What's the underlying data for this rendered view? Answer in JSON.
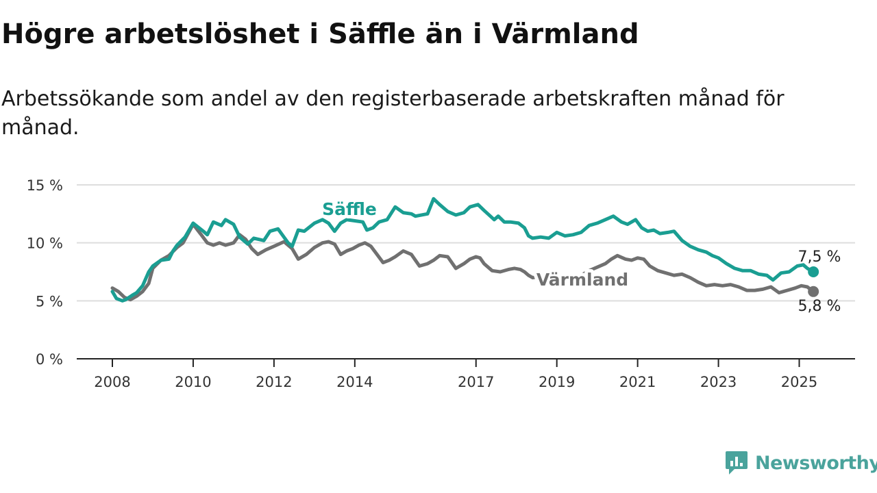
{
  "title": "Högre arbetslöshet i Säffle än i Värmland",
  "subtitle": "Arbetssökande som andel av den registerbaserade arbetskraften månad för månad.",
  "brand": "Newsworthy",
  "colors": {
    "saffle": "#1a9e92",
    "varmland": "#707070",
    "grid": "#dddddd",
    "axis": "#222222"
  },
  "chart_data": {
    "type": "line",
    "title": "Högre arbetslöshet i Säffle än i Värmland",
    "ylim": [
      0,
      15
    ],
    "xlim": [
      2008,
      2025.5
    ],
    "y_ticks": [
      0,
      5,
      10,
      15
    ],
    "y_tick_labels": [
      "0 %",
      "5 %",
      "10 %",
      "15 %"
    ],
    "x_ticks": [
      2008,
      2010,
      2012,
      2014,
      2017,
      2019,
      2021,
      2023,
      2025
    ],
    "x_tick_labels": [
      "2008",
      "2010",
      "2012",
      "2014",
      "2017",
      "2019",
      "2021",
      "2023",
      "2025"
    ],
    "grid": true,
    "legend": "inline labels",
    "series": [
      {
        "name": "Säffle",
        "end_label": "7,5 %",
        "x": [
          2008.0,
          2008.1,
          2008.25,
          2008.33,
          2008.5,
          2008.6,
          2008.75,
          2008.9,
          2009.0,
          2009.2,
          2009.4,
          2009.5,
          2009.6,
          2009.8,
          2010.0,
          2010.25,
          2010.35,
          2010.5,
          2010.7,
          2010.8,
          2011.0,
          2011.15,
          2011.35,
          2011.5,
          2011.75,
          2011.9,
          2012.1,
          2012.35,
          2012.45,
          2012.6,
          2012.75,
          2013.0,
          2013.2,
          2013.35,
          2013.5,
          2013.65,
          2013.8,
          2014.2,
          2014.3,
          2014.45,
          2014.6,
          2014.8,
          2015.0,
          2015.2,
          2015.4,
          2015.5,
          2015.8,
          2015.95,
          2016.1,
          2016.3,
          2016.5,
          2016.7,
          2016.85,
          2017.05,
          2017.2,
          2017.45,
          2017.55,
          2017.7,
          2017.85,
          2018.05,
          2018.2,
          2018.3,
          2018.4,
          2018.6,
          2018.8,
          2019.0,
          2019.2,
          2019.4,
          2019.6,
          2019.8,
          2020.0,
          2020.2,
          2020.4,
          2020.6,
          2020.75,
          2020.95,
          2021.1,
          2021.25,
          2021.4,
          2021.55,
          2021.75,
          2021.9,
          2022.1,
          2022.3,
          2022.5,
          2022.7,
          2022.85,
          2023.0,
          2023.2,
          2023.4,
          2023.6,
          2023.8,
          2024.0,
          2024.2,
          2024.35,
          2024.55,
          2024.75,
          2024.95,
          2025.1,
          2025.2,
          2025.35
        ],
        "y": [
          5.8,
          5.2,
          5.0,
          5.1,
          5.5,
          5.7,
          6.3,
          7.5,
          8.0,
          8.5,
          8.6,
          9.3,
          9.8,
          10.5,
          11.7,
          11.0,
          10.7,
          11.8,
          11.5,
          12.0,
          11.6,
          10.5,
          9.9,
          10.4,
          10.2,
          11.0,
          11.2,
          10.0,
          9.7,
          11.1,
          11.0,
          11.7,
          12.0,
          11.7,
          11.0,
          11.7,
          12.0,
          11.8,
          11.1,
          11.3,
          11.8,
          12.0,
          13.1,
          12.6,
          12.5,
          12.3,
          12.5,
          13.8,
          13.3,
          12.7,
          12.4,
          12.6,
          13.1,
          13.3,
          12.8,
          12.0,
          12.3,
          11.8,
          11.8,
          11.7,
          11.3,
          10.6,
          10.4,
          10.5,
          10.4,
          10.9,
          10.6,
          10.7,
          10.9,
          11.5,
          11.7,
          12.0,
          12.3,
          11.8,
          11.6,
          12.0,
          11.3,
          11.0,
          11.1,
          10.8,
          10.9,
          11.0,
          10.2,
          9.7,
          9.4,
          9.2,
          8.9,
          8.7,
          8.2,
          7.8,
          7.6,
          7.6,
          7.3,
          7.2,
          6.8,
          7.4,
          7.5,
          8.0,
          8.1,
          7.8,
          7.5
        ]
      },
      {
        "name": "Värmland",
        "end_label": "5,8 %",
        "x": [
          2008.0,
          2008.15,
          2008.3,
          2008.45,
          2008.6,
          2008.75,
          2008.9,
          2009.0,
          2009.2,
          2009.4,
          2009.6,
          2009.75,
          2010.0,
          2010.2,
          2010.35,
          2010.5,
          2010.65,
          2010.8,
          2011.0,
          2011.15,
          2011.3,
          2011.45,
          2011.6,
          2011.8,
          2012.0,
          2012.25,
          2012.45,
          2012.6,
          2012.8,
          2013.0,
          2013.2,
          2013.35,
          2013.5,
          2013.65,
          2013.8,
          2013.95,
          2014.1,
          2014.25,
          2014.4,
          2014.55,
          2014.7,
          2014.85,
          2015.0,
          2015.2,
          2015.4,
          2015.6,
          2015.8,
          2015.95,
          2016.1,
          2016.3,
          2016.5,
          2016.7,
          2016.85,
          2017.0,
          2017.1,
          2017.2,
          2017.4,
          2017.6,
          2017.8,
          2017.95,
          2018.1,
          2018.2,
          2018.3,
          2018.4,
          2018.6,
          2018.8,
          2019.0,
          2019.2,
          2019.4,
          2019.6,
          2019.8,
          2020.0,
          2020.2,
          2020.35,
          2020.5,
          2020.7,
          2020.85,
          2021.0,
          2021.15,
          2021.3,
          2021.5,
          2021.7,
          2021.9,
          2022.1,
          2022.3,
          2022.5,
          2022.7,
          2022.9,
          2023.1,
          2023.3,
          2023.5,
          2023.7,
          2023.9,
          2024.1,
          2024.3,
          2024.5,
          2024.7,
          2024.9,
          2025.05,
          2025.2,
          2025.35
        ],
        "y": [
          6.1,
          5.8,
          5.3,
          5.1,
          5.4,
          5.8,
          6.5,
          7.8,
          8.5,
          8.9,
          9.6,
          10.0,
          11.6,
          10.7,
          10.0,
          9.8,
          10.0,
          9.8,
          10.0,
          10.7,
          10.3,
          9.5,
          9.0,
          9.4,
          9.7,
          10.1,
          9.5,
          8.6,
          9.0,
          9.6,
          10.0,
          10.1,
          9.9,
          9.0,
          9.3,
          9.5,
          9.8,
          10.0,
          9.7,
          9.0,
          8.3,
          8.5,
          8.8,
          9.3,
          9.0,
          8.0,
          8.2,
          8.5,
          8.9,
          8.8,
          7.8,
          8.2,
          8.6,
          8.8,
          8.7,
          8.2,
          7.6,
          7.5,
          7.7,
          7.8,
          7.7,
          7.5,
          7.2,
          7.0,
          7.1,
          7.0,
          7.1,
          7.0,
          6.9,
          7.2,
          7.6,
          7.9,
          8.2,
          8.6,
          8.9,
          8.6,
          8.5,
          8.7,
          8.6,
          8.0,
          7.6,
          7.4,
          7.2,
          7.3,
          7.0,
          6.6,
          6.3,
          6.4,
          6.3,
          6.4,
          6.2,
          5.9,
          5.9,
          6.0,
          6.2,
          5.7,
          5.9,
          6.1,
          6.3,
          6.2,
          5.8
        ]
      }
    ]
  }
}
